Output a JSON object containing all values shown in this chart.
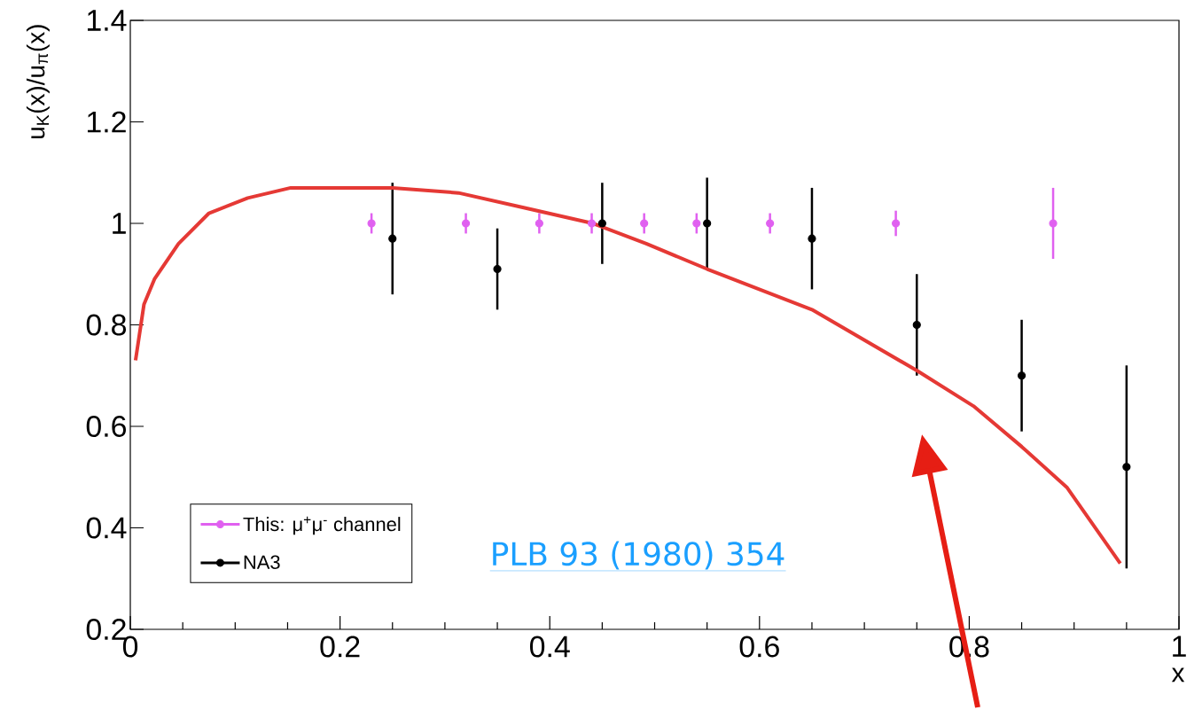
{
  "chart_data": {
    "type": "scatter",
    "xlabel": "x",
    "ylabel": "u$_{K}$(x)/u$_{π}$(x)",
    "xlim": [
      0,
      1
    ],
    "ylim": [
      0.2,
      1.4
    ],
    "xticks": [
      0,
      0.2,
      0.4,
      0.6,
      0.8,
      1
    ],
    "yticks": [
      0.2,
      0.4,
      0.6,
      0.8,
      1,
      1.2,
      1.4
    ],
    "grid": false,
    "legend": "bottom left",
    "annotations": [
      "PLB 93 (1980) 354"
    ],
    "series": [
      {
        "name": "This: μ$^{+}$μ$^{-}$ channel",
        "type": "scatter",
        "marker": "circle",
        "color": "#e060f0",
        "x": [
          0.23,
          0.32,
          0.39,
          0.44,
          0.49,
          0.54,
          0.61,
          0.73,
          0.88
        ],
        "values": [
          1,
          1,
          1,
          1,
          1,
          1,
          1,
          1,
          1
        ],
        "errors": [
          0.02,
          0.02,
          0.02,
          0.02,
          0.02,
          0.02,
          0.02,
          0.025,
          0.07
        ]
      },
      {
        "name": "NA3",
        "type": "scatter",
        "marker": "circle",
        "color": "#000000",
        "x": [
          0.25,
          0.35,
          0.45,
          0.55,
          0.65,
          0.75,
          0.85,
          0.95
        ],
        "values": [
          0.97,
          0.91,
          1.0,
          1.0,
          0.97,
          0.8,
          0.7,
          0.52
        ],
        "errors": [
          0.11,
          0.08,
          0.08,
          0.09,
          0.1,
          0.1,
          0.11,
          0.2
        ]
      },
      {
        "type": "line",
        "marker": "none",
        "color": "#e53935",
        "x": [
          0.005,
          0.013,
          0.023,
          0.046,
          0.075,
          0.112,
          0.153,
          0.195,
          0.25,
          0.313,
          0.377,
          0.441,
          0.492,
          0.55,
          0.65,
          0.75,
          0.804,
          0.85,
          0.893,
          0.944
        ],
        "values": [
          0.73,
          0.84,
          0.89,
          0.96,
          1.02,
          1.05,
          1.07,
          1.07,
          1.07,
          1.06,
          1.03,
          1.0,
          0.96,
          0.91,
          0.83,
          0.71,
          0.64,
          0.56,
          0.48,
          0.33
        ]
      }
    ]
  }
}
